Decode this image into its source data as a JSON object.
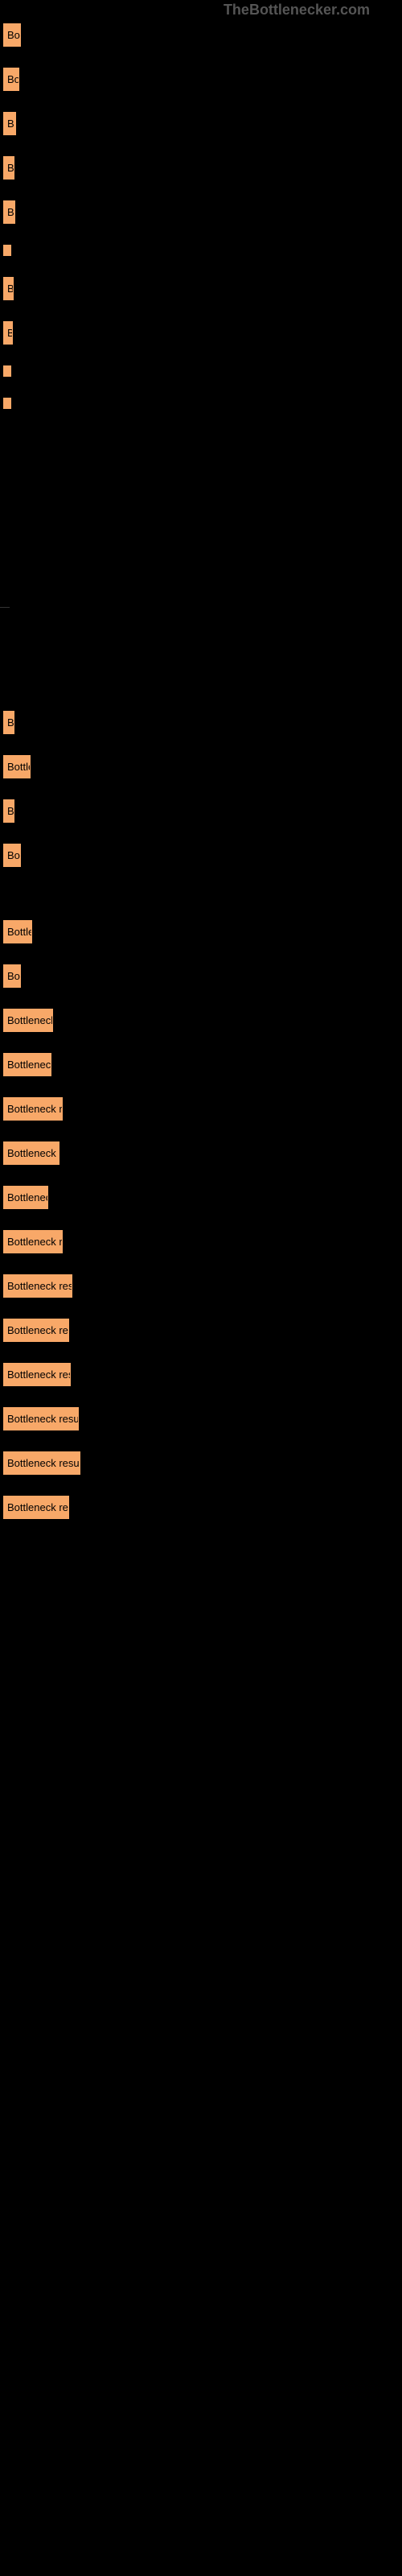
{
  "watermark": "TheBottlenecker.com",
  "items": [
    {
      "label": "Bo",
      "width": 22,
      "link": ""
    },
    {
      "label": "Bo",
      "width": 20,
      "link": ""
    },
    {
      "label": "B",
      "width": 16,
      "link": ""
    },
    {
      "label": "B",
      "width": 14,
      "link": ""
    },
    {
      "label": "B",
      "width": 15,
      "link": ""
    },
    {
      "label": "",
      "width": 8,
      "link": ""
    },
    {
      "label": "B",
      "width": 13,
      "link": ""
    },
    {
      "label": "B",
      "width": 12,
      "link": ""
    },
    {
      "label": "",
      "width": 8,
      "link": ""
    },
    {
      "label": "",
      "width": 6,
      "link": ""
    },
    {
      "label": "",
      "width": 0,
      "link": "",
      "spacer": true
    },
    {
      "label": "",
      "width": 0,
      "link": "",
      "tinyline": true
    },
    {
      "label": "B",
      "width": 14,
      "link": ""
    },
    {
      "label": "Bottle",
      "width": 34,
      "link": ""
    },
    {
      "label": "B",
      "width": 14,
      "link": ""
    },
    {
      "label": "Bo",
      "width": 22,
      "link": ""
    },
    {
      "label": "",
      "width": 0,
      "link": "",
      "spacer2": true
    },
    {
      "label": "Bottle",
      "width": 36,
      "link": ""
    },
    {
      "label": "Bo",
      "width": 22,
      "link": ""
    },
    {
      "label": "Bottleneck",
      "width": 62,
      "link": ""
    },
    {
      "label": "Bottleneck",
      "width": 60,
      "link": ""
    },
    {
      "label": "Bottleneck re",
      "width": 74,
      "link": ""
    },
    {
      "label": "Bottleneck r",
      "width": 70,
      "link": ""
    },
    {
      "label": "Bottlenec",
      "width": 56,
      "link": ""
    },
    {
      "label": "Bottleneck re",
      "width": 74,
      "link": ""
    },
    {
      "label": "Bottleneck resu",
      "width": 86,
      "link": ""
    },
    {
      "label": "Bottleneck res",
      "width": 82,
      "link": ""
    },
    {
      "label": "Bottleneck resu",
      "width": 84,
      "link": ""
    },
    {
      "label": "Bottleneck result",
      "width": 94,
      "link": ""
    },
    {
      "label": "Bottleneck result",
      "width": 96,
      "link": ""
    },
    {
      "label": "Bottleneck res",
      "width": 82,
      "link": ""
    }
  ],
  "bar_color": "#f8a868",
  "bg_color": "#000000",
  "text_color": "#d0d0d0"
}
